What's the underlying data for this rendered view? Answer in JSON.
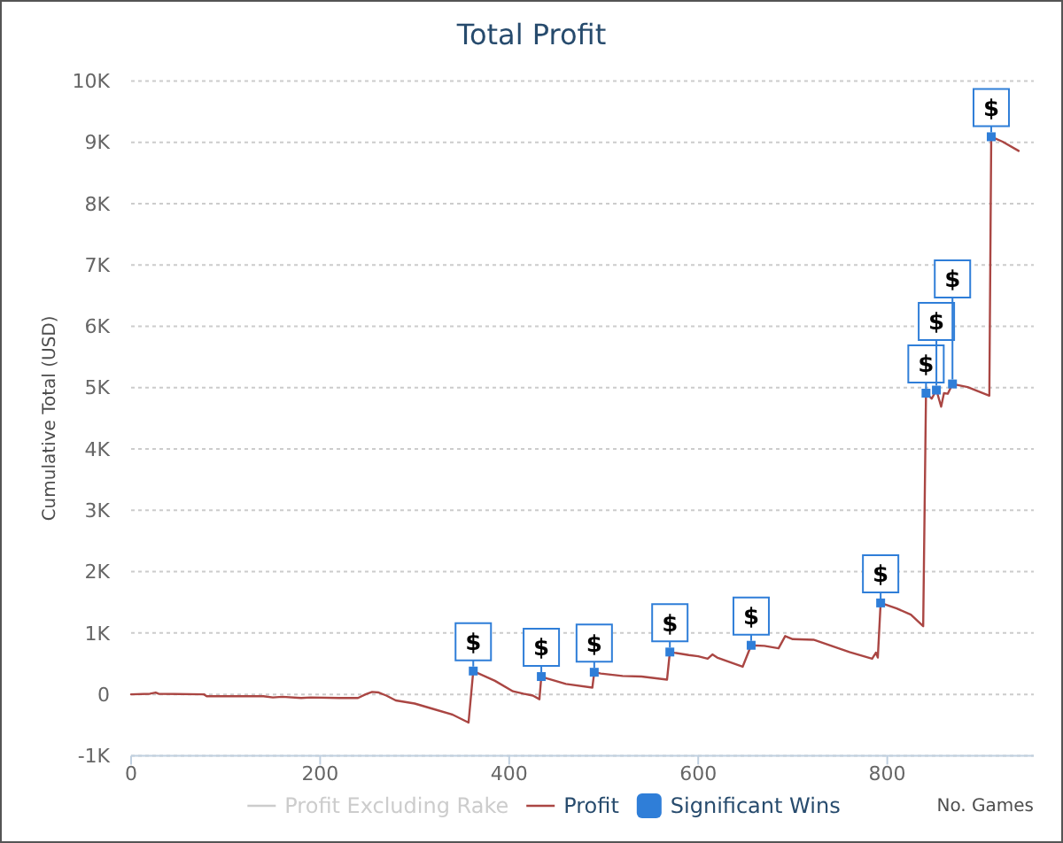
{
  "chart_data": {
    "type": "line",
    "title": "Total Profit",
    "xlabel": "No. Games",
    "ylabel": "Cumulative Total (USD)",
    "xlim": [
      0,
      955
    ],
    "xticks": [
      0,
      200,
      400,
      600,
      800
    ],
    "ylim": [
      -1000,
      10000
    ],
    "yticks": [
      {
        "value": -1000,
        "label": "-1K"
      },
      0,
      {
        "value": 1000,
        "label": "1K"
      },
      {
        "value": 2000,
        "label": "2K"
      },
      {
        "value": 3000,
        "label": "3K"
      },
      {
        "value": 4000,
        "label": "4K"
      },
      {
        "value": 5000,
        "label": "5K"
      },
      {
        "value": 6000,
        "label": "6K"
      },
      {
        "value": 7000,
        "label": "7K"
      },
      {
        "value": 8000,
        "label": "8K"
      },
      {
        "value": 9000,
        "label": "9K"
      },
      {
        "value": 10000,
        "label": "10K"
      }
    ],
    "grid": "y",
    "legend": "bottom",
    "marker": "none",
    "series": [
      {
        "name": "Profit Excluding Rake",
        "color": "#cccccc"
      },
      {
        "name": "Profit",
        "color": "#aa4643",
        "x": [
          0,
          20,
          26,
          29,
          77,
          80,
          140,
          150,
          160,
          180,
          190,
          220,
          240,
          248,
          255,
          262,
          270,
          280,
          300,
          320,
          340,
          357,
          362,
          385,
          404,
          415,
          425,
          432,
          434,
          440,
          460,
          488,
          490,
          497,
          520,
          540,
          567,
          570,
          590,
          600,
          610,
          615,
          620,
          647,
          656,
          670,
          685,
          692,
          700,
          722,
          760,
          784,
          788,
          790,
          793,
          810,
          825,
          838,
          841,
          847,
          852,
          857,
          860,
          864,
          869,
          885,
          908,
          910,
          922,
          939
        ],
        "values": [
          0,
          10,
          30,
          10,
          0,
          -30,
          -30,
          -50,
          -40,
          -60,
          -50,
          -60,
          -60,
          0,
          40,
          30,
          -20,
          -100,
          -150,
          -240,
          -330,
          -460,
          380,
          220,
          50,
          10,
          -20,
          -80,
          290,
          260,
          170,
          110,
          360,
          340,
          300,
          290,
          240,
          690,
          640,
          620,
          580,
          650,
          600,
          450,
          800,
          790,
          750,
          950,
          900,
          890,
          690,
          580,
          680,
          600,
          1490,
          1400,
          1300,
          1110,
          4910,
          4820,
          4960,
          4690,
          4910,
          4900,
          5060,
          5010,
          4870,
          9090,
          9010,
          8860
        ]
      },
      {
        "name": "Significant Wins",
        "type": "scatter",
        "color": "#2f7ed8",
        "marker": "square",
        "x": [
          362,
          434,
          490,
          570,
          656,
          793,
          841,
          852,
          869,
          910
        ],
        "values": [
          380,
          290,
          360,
          690,
          800,
          1490,
          4910,
          4960,
          5060,
          9090
        ],
        "value_labels": [
          "$",
          "$",
          "$",
          "$",
          "$",
          "$",
          "$",
          "$",
          "$",
          "$"
        ]
      }
    ]
  }
}
